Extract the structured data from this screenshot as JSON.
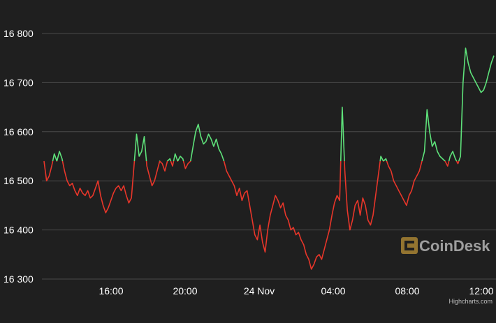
{
  "chart_data": {
    "type": "line",
    "title": "",
    "xlabel": "",
    "ylabel": "",
    "y_ticks": [
      "16 300",
      "16 400",
      "16 500",
      "16 600",
      "16 700",
      "16 800"
    ],
    "x_ticks": [
      "16:00",
      "20:00",
      "24 Nov",
      "04:00",
      "08:00",
      "12:00"
    ],
    "ylim": [
      16300,
      16800
    ],
    "baseline": 16540,
    "grid": true,
    "colors": {
      "above": "#5ee17a",
      "below": "#e8362a",
      "background": "#1f1f1f",
      "grid": "#4a4a4a"
    },
    "series": [
      {
        "values": [
          16540,
          16500,
          16510,
          16530,
          16555,
          16540,
          16560,
          16545,
          16520,
          16500,
          16490,
          16495,
          16480,
          16470,
          16485,
          16475,
          16470,
          16480,
          16465,
          16470,
          16485,
          16500,
          16470,
          16450,
          16435,
          16445,
          16460,
          16475,
          16485,
          16490,
          16480,
          16490,
          16470,
          16455,
          16465,
          16530,
          16595,
          16550,
          16560,
          16590,
          16530,
          16510,
          16490,
          16500,
          16520,
          16540,
          16535,
          16520,
          16540,
          16545,
          16530,
          16555,
          16540,
          16550,
          16545,
          16525,
          16535,
          16540,
          16570,
          16600,
          16615,
          16590,
          16575,
          16580,
          16595,
          16585,
          16570,
          16585,
          16565,
          16555,
          16540,
          16520,
          16510,
          16500,
          16490,
          16470,
          16485,
          16460,
          16475,
          16480,
          16450,
          16420,
          16390,
          16380,
          16410,
          16375,
          16355,
          16400,
          16430,
          16450,
          16470,
          16460,
          16445,
          16455,
          16430,
          16420,
          16400,
          16405,
          16390,
          16395,
          16380,
          16370,
          16350,
          16340,
          16320,
          16330,
          16345,
          16350,
          16340,
          16360,
          16380,
          16400,
          16430,
          16455,
          16470,
          16460,
          16650,
          16520,
          16440,
          16400,
          16420,
          16450,
          16460,
          16430,
          16465,
          16450,
          16420,
          16410,
          16430,
          16470,
          16510,
          16550,
          16540,
          16545,
          16530,
          16520,
          16500,
          16490,
          16480,
          16470,
          16460,
          16450,
          16470,
          16480,
          16500,
          16510,
          16520,
          16540,
          16560,
          16645,
          16600,
          16570,
          16580,
          16560,
          16550,
          16545,
          16540,
          16530,
          16550,
          16560,
          16545,
          16535,
          16550,
          16700,
          16770,
          16740,
          16720,
          16710,
          16700,
          16690,
          16680,
          16685,
          16700,
          16720,
          16740,
          16755
        ]
      }
    ]
  },
  "credit": "Highcharts.com",
  "brand": {
    "name": "CoinDesk",
    "logo_icon": "coindesk-logo-icon"
  }
}
